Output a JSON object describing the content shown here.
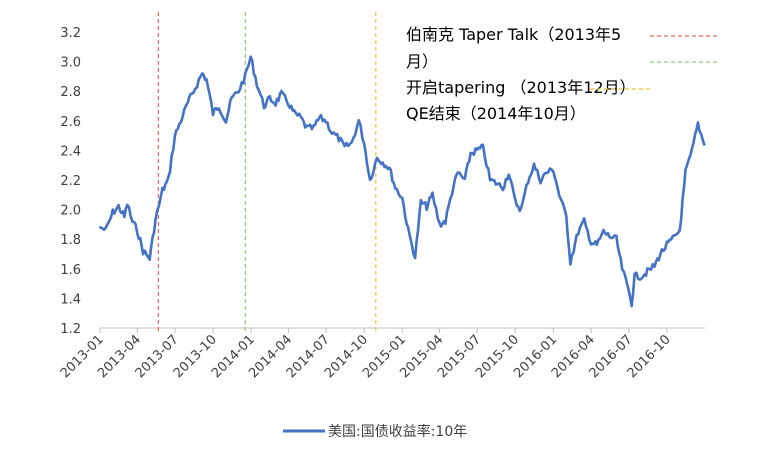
{
  "chart_data": {
    "type": "line",
    "title": "",
    "xlabel": "",
    "ylabel": "",
    "ylim": [
      1.2,
      3.2
    ],
    "yticks": [
      "1.2",
      "1.4",
      "1.6",
      "1.8",
      "2.0",
      "2.2",
      "2.4",
      "2.6",
      "2.8",
      "3.0",
      "3.2"
    ],
    "xticks": [
      "2013-01",
      "2013-04",
      "2013-07",
      "2013-10",
      "2014-01",
      "2014-04",
      "2014-07",
      "2014-10",
      "2015-01",
      "2015-04",
      "2015-07",
      "2015-10",
      "2016-01",
      "2016-04",
      "2016-07",
      "2016-10"
    ],
    "grid": false,
    "legend_position": "bottom",
    "series": [
      {
        "name": "美国:国债收益率:10年",
        "color": "#4472C4",
        "x": [
          "2013-01-02",
          "2013-01-15",
          "2013-02-01",
          "2013-02-15",
          "2013-03-01",
          "2013-03-08",
          "2013-03-20",
          "2013-04-01",
          "2013-04-15",
          "2013-05-01",
          "2013-05-15",
          "2013-06-01",
          "2013-06-15",
          "2013-07-01",
          "2013-07-15",
          "2013-08-01",
          "2013-08-15",
          "2013-09-05",
          "2013-09-15",
          "2013-10-01",
          "2013-10-15",
          "2013-11-01",
          "2013-11-15",
          "2013-12-01",
          "2013-12-18",
          "2013-12-31",
          "2014-01-15",
          "2014-02-01",
          "2014-02-15",
          "2014-03-01",
          "2014-03-15",
          "2014-04-01",
          "2014-04-15",
          "2014-05-01",
          "2014-05-15",
          "2014-06-01",
          "2014-06-15",
          "2014-07-01",
          "2014-07-15",
          "2014-08-01",
          "2014-08-15",
          "2014-09-01",
          "2014-09-18",
          "2014-10-01",
          "2014-10-15",
          "2014-11-01",
          "2014-11-15",
          "2014-12-01",
          "2014-12-15",
          "2015-01-01",
          "2015-01-15",
          "2015-02-01",
          "2015-02-15",
          "2015-03-01",
          "2015-03-15",
          "2015-04-01",
          "2015-04-15",
          "2015-05-01",
          "2015-05-15",
          "2015-06-01",
          "2015-06-15",
          "2015-07-01",
          "2015-07-15",
          "2015-08-01",
          "2015-08-15",
          "2015-09-01",
          "2015-09-15",
          "2015-10-01",
          "2015-10-15",
          "2015-11-01",
          "2015-11-15",
          "2015-12-01",
          "2015-12-15",
          "2016-01-01",
          "2016-01-15",
          "2016-02-01",
          "2016-02-11",
          "2016-03-01",
          "2016-03-15",
          "2016-04-01",
          "2016-04-15",
          "2016-05-01",
          "2016-05-15",
          "2016-06-01",
          "2016-06-15",
          "2016-07-01",
          "2016-07-08",
          "2016-07-15",
          "2016-08-01",
          "2016-08-15",
          "2016-09-01",
          "2016-09-15",
          "2016-10-01",
          "2016-10-15",
          "2016-11-01",
          "2016-11-15",
          "2016-12-01",
          "2016-12-15",
          "2016-12-30"
        ],
        "values": [
          1.88,
          1.86,
          1.98,
          2.02,
          1.95,
          2.04,
          1.92,
          1.86,
          1.72,
          1.67,
          1.93,
          2.13,
          2.2,
          2.5,
          2.6,
          2.72,
          2.8,
          2.92,
          2.88,
          2.65,
          2.7,
          2.6,
          2.75,
          2.8,
          2.9,
          3.03,
          2.85,
          2.7,
          2.75,
          2.72,
          2.78,
          2.72,
          2.65,
          2.62,
          2.55,
          2.55,
          2.62,
          2.6,
          2.52,
          2.48,
          2.42,
          2.45,
          2.6,
          2.45,
          2.2,
          2.35,
          2.32,
          2.28,
          2.15,
          2.08,
          1.86,
          1.68,
          2.05,
          2.02,
          2.1,
          1.9,
          1.92,
          2.12,
          2.25,
          2.2,
          2.38,
          2.4,
          2.42,
          2.2,
          2.18,
          2.15,
          2.25,
          2.05,
          2.0,
          2.2,
          2.3,
          2.2,
          2.25,
          2.27,
          2.1,
          1.95,
          1.65,
          1.85,
          1.92,
          1.78,
          1.76,
          1.85,
          1.82,
          1.8,
          1.6,
          1.45,
          1.37,
          1.55,
          1.55,
          1.58,
          1.62,
          1.7,
          1.76,
          1.8,
          1.86,
          2.25,
          2.4,
          2.58,
          2.44
        ]
      }
    ],
    "annotations": [
      {
        "text_line1": "伯南克 Taper Talk（2013年5",
        "text_line2": "月）",
        "x": "2013-05-22",
        "color": "#E06666"
      },
      {
        "text_line1": "开启tapering （2013年12月）",
        "x": "2013-12-18",
        "color": "#93C47D"
      },
      {
        "text_line1": "QE结束（2014年10月）",
        "x": "2014-10-29",
        "color": "#F1C232"
      }
    ]
  }
}
